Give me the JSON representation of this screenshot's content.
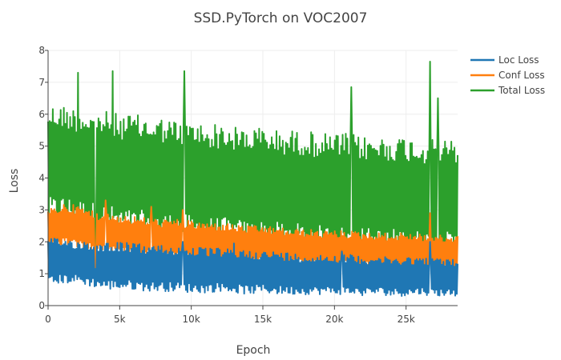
{
  "chart_data": {
    "type": "line",
    "title": "SSD.PyTorch on VOC2007",
    "xlabel": "Epoch",
    "ylabel": "Loss",
    "xlim": [
      0,
      28600
    ],
    "ylim": [
      0,
      8
    ],
    "x_ticks": [
      {
        "value": 0,
        "label": "0"
      },
      {
        "value": 5000,
        "label": "5k"
      },
      {
        "value": 10000,
        "label": "10k"
      },
      {
        "value": 15000,
        "label": "15k"
      },
      {
        "value": 20000,
        "label": "20k"
      },
      {
        "value": 25000,
        "label": "25k"
      }
    ],
    "y_ticks": [
      {
        "value": 0,
        "label": "0"
      },
      {
        "value": 1,
        "label": "1"
      },
      {
        "value": 2,
        "label": "2"
      },
      {
        "value": 3,
        "label": "3"
      },
      {
        "value": 4,
        "label": "4"
      },
      {
        "value": 5,
        "label": "5"
      },
      {
        "value": 6,
        "label": "6"
      },
      {
        "value": 7,
        "label": "7"
      },
      {
        "value": 8,
        "label": "8"
      }
    ],
    "grid": true,
    "legend_position": "top-right",
    "series": [
      {
        "name": "Loc Loss",
        "color": "#1f77b4",
        "x": [
          0,
          1000,
          2000,
          3000,
          4000,
          5000,
          6000,
          7000,
          8000,
          9000,
          10000,
          11000,
          12000,
          13000,
          14000,
          15000,
          16000,
          17000,
          18000,
          19000,
          20000,
          21000,
          22000,
          23000,
          24000,
          25000,
          26000,
          27000,
          28000,
          28600
        ],
        "low": [
          0.6,
          0.7,
          0.7,
          0.6,
          0.5,
          0.5,
          0.5,
          0.45,
          0.45,
          0.45,
          0.4,
          0.4,
          0.45,
          0.4,
          0.35,
          0.4,
          0.35,
          0.35,
          0.35,
          0.35,
          0.35,
          0.35,
          0.3,
          0.35,
          0.3,
          0.3,
          0.35,
          0.3,
          0.3,
          0.3
        ],
        "high": [
          2.1,
          2.1,
          2.05,
          2.0,
          2.0,
          2.0,
          1.95,
          1.9,
          1.9,
          1.85,
          1.85,
          1.8,
          1.8,
          1.75,
          1.75,
          1.7,
          1.7,
          1.65,
          1.6,
          1.6,
          1.6,
          1.6,
          1.55,
          1.55,
          1.5,
          1.55,
          1.5,
          1.5,
          1.45,
          1.45
        ],
        "spikes": [
          {
            "x": 3300,
            "y": 1.15
          },
          {
            "x": 9400,
            "y": 2.0
          },
          {
            "x": 13000,
            "y": 1.95
          },
          {
            "x": 20500,
            "y": 1.7
          },
          {
            "x": 26700,
            "y": 2.0
          }
        ]
      },
      {
        "name": "Conf Loss",
        "color": "#ff7f0e",
        "x": [
          0,
          1000,
          2000,
          3000,
          4000,
          5000,
          6000,
          7000,
          8000,
          9000,
          10000,
          11000,
          12000,
          13000,
          14000,
          15000,
          16000,
          17000,
          18000,
          19000,
          20000,
          21000,
          22000,
          23000,
          24000,
          25000,
          26000,
          27000,
          28000,
          28600
        ],
        "low": [
          1.7,
          1.9,
          1.8,
          1.7,
          1.6,
          1.6,
          1.5,
          1.5,
          1.45,
          1.4,
          1.4,
          1.35,
          1.35,
          1.3,
          1.3,
          1.3,
          1.25,
          1.25,
          1.2,
          1.2,
          1.2,
          1.15,
          1.15,
          1.15,
          1.1,
          1.1,
          1.1,
          1.1,
          1.05,
          1.05
        ],
        "high": [
          3.0,
          3.2,
          3.15,
          3.0,
          2.9,
          2.85,
          2.8,
          2.75,
          2.7,
          2.7,
          2.65,
          2.6,
          2.6,
          2.55,
          2.5,
          2.5,
          2.45,
          2.4,
          2.4,
          2.35,
          2.35,
          2.35,
          2.3,
          2.3,
          2.25,
          2.3,
          2.25,
          2.2,
          2.2,
          2.2
        ],
        "spikes": [
          {
            "x": 3300,
            "y": 1.15
          },
          {
            "x": 4000,
            "y": 3.3
          },
          {
            "x": 7200,
            "y": 3.1
          },
          {
            "x": 9400,
            "y": 3.0
          },
          {
            "x": 13600,
            "y": 1.3
          },
          {
            "x": 26700,
            "y": 2.9
          }
        ]
      },
      {
        "name": "Total Loss",
        "color": "#2ca02c",
        "x": [
          0,
          1000,
          2000,
          3000,
          4000,
          5000,
          6000,
          7000,
          8000,
          9000,
          10000,
          11000,
          12000,
          13000,
          14000,
          15000,
          16000,
          17000,
          18000,
          19000,
          20000,
          21000,
          22000,
          23000,
          24000,
          25000,
          26000,
          27000,
          28000,
          28600
        ],
        "low": [
          2.6,
          2.7,
          2.6,
          2.5,
          2.4,
          2.3,
          2.2,
          2.2,
          2.15,
          2.1,
          2.05,
          2.0,
          2.0,
          1.95,
          1.9,
          1.9,
          1.85,
          1.8,
          1.8,
          1.75,
          1.75,
          1.7,
          1.7,
          1.65,
          1.65,
          1.65,
          1.6,
          1.6,
          1.55,
          1.55
        ],
        "high": [
          6.3,
          6.3,
          6.2,
          6.1,
          6.1,
          6.0,
          6.0,
          5.9,
          5.9,
          5.8,
          5.8,
          5.7,
          5.7,
          5.6,
          5.6,
          5.6,
          5.5,
          5.5,
          5.5,
          5.4,
          5.4,
          5.4,
          5.3,
          5.3,
          5.3,
          5.3,
          5.2,
          5.2,
          5.2,
          5.2
        ],
        "spikes": [
          {
            "x": 2100,
            "y": 7.3
          },
          {
            "x": 4500,
            "y": 7.35
          },
          {
            "x": 9500,
            "y": 7.35
          },
          {
            "x": 21200,
            "y": 6.85
          },
          {
            "x": 26700,
            "y": 7.65
          },
          {
            "x": 27200,
            "y": 6.5
          },
          {
            "x": 3300,
            "y": 1.2
          },
          {
            "x": 13600,
            "y": 1.3
          }
        ]
      }
    ]
  }
}
